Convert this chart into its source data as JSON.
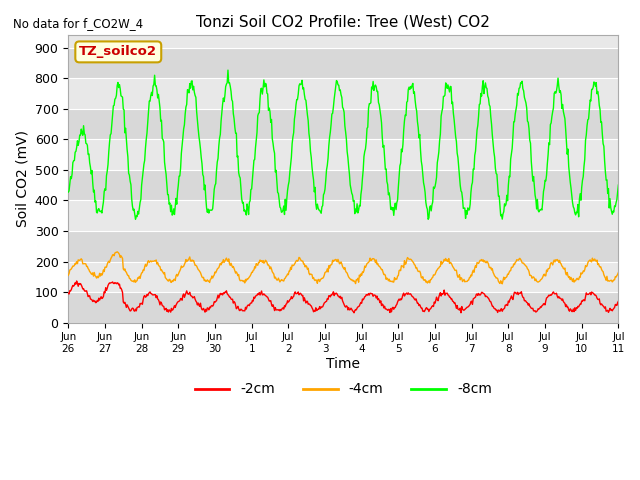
{
  "title": "Tonzi Soil CO2 Profile: Tree (West) CO2",
  "no_data_label": "No data for f_CO2W_4",
  "ylabel": "Soil CO2 (mV)",
  "xlabel": "Time",
  "ylim": [
    0,
    940
  ],
  "yticks": [
    0,
    100,
    200,
    300,
    400,
    500,
    600,
    700,
    800,
    900
  ],
  "bg_color": "#f0f0f0",
  "plot_bg_color": "#e8e8e8",
  "legend_label_2cm": "-2cm",
  "legend_label_4cm": "-4cm",
  "legend_label_8cm": "-8cm",
  "color_2cm": "#ff0000",
  "color_4cm": "#ffa500",
  "color_8cm": "#00ff00",
  "annotation_text": "TZ_soilco2",
  "annotation_bg": "#ffffe0",
  "annotation_border": "#c8a000",
  "x_tick_labels": [
    "Jun\n26",
    "Jun\n27",
    "Jun\n28",
    "Jun\n29",
    "Jun\n30",
    "Jul\n1",
    "Jul\n2",
    "Jul\n3",
    "Jul\n4",
    "Jul\n5",
    "Jul\n6",
    "Jul\n7",
    "Jul\n8",
    "Jul\n9",
    "Jul\n10",
    "Jul\n11"
  ],
  "num_days": 15,
  "seed": 42
}
